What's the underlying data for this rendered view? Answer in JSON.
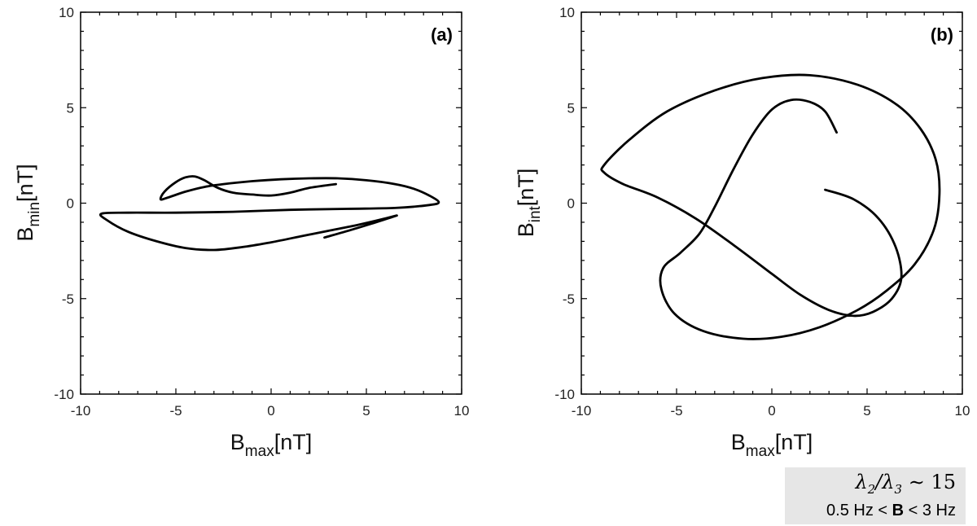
{
  "chart_data": [
    {
      "type": "line",
      "panel_label": "(a)",
      "xlabel": {
        "main": "B",
        "sub": "max",
        "unit": "[nT]"
      },
      "ylabel": {
        "main": "B",
        "sub": "min",
        "unit": "[nT]"
      },
      "xlim": [
        -10,
        10
      ],
      "ylim": [
        -10,
        10
      ],
      "x_ticks": [
        -10,
        -5,
        0,
        5,
        10
      ],
      "y_ticks": [
        -10,
        -5,
        0,
        5,
        10
      ],
      "x_tick_labels": [
        "-10",
        "-5",
        "0",
        "5",
        "10"
      ],
      "y_tick_labels": [
        "-10",
        "-5",
        "0",
        "5",
        "10"
      ],
      "grid": false,
      "series": [
        {
          "points": [
            [
              3.4,
              1.0
            ],
            [
              2.0,
              0.8
            ],
            [
              1.0,
              0.55
            ],
            [
              0.0,
              0.4
            ],
            [
              -1.0,
              0.45
            ],
            [
              -2.0,
              0.55
            ],
            [
              -2.8,
              0.8
            ],
            [
              -3.5,
              1.2
            ],
            [
              -4.0,
              1.4
            ],
            [
              -4.5,
              1.35
            ],
            [
              -5.0,
              1.1
            ],
            [
              -5.6,
              0.6
            ],
            [
              -5.8,
              0.2
            ],
            [
              -5.4,
              0.3
            ],
            [
              -4.5,
              0.6
            ],
            [
              -3.5,
              0.85
            ],
            [
              -2.5,
              1.0
            ],
            [
              -1.0,
              1.15
            ],
            [
              0.5,
              1.25
            ],
            [
              2.0,
              1.3
            ],
            [
              3.5,
              1.3
            ],
            [
              5.0,
              1.2
            ],
            [
              6.5,
              1.0
            ],
            [
              7.5,
              0.75
            ],
            [
              8.3,
              0.4
            ],
            [
              8.8,
              0.05
            ],
            [
              8.3,
              -0.1
            ],
            [
              6.5,
              -0.25
            ],
            [
              4.0,
              -0.3
            ],
            [
              1.0,
              -0.35
            ],
            [
              -2.0,
              -0.45
            ],
            [
              -5.0,
              -0.5
            ],
            [
              -7.5,
              -0.5
            ],
            [
              -8.9,
              -0.55
            ],
            [
              -8.6,
              -0.9
            ],
            [
              -7.5,
              -1.5
            ],
            [
              -6.0,
              -2.0
            ],
            [
              -4.5,
              -2.35
            ],
            [
              -3.0,
              -2.45
            ],
            [
              -1.5,
              -2.3
            ],
            [
              0.0,
              -2.05
            ],
            [
              1.5,
              -1.75
            ],
            [
              3.0,
              -1.45
            ],
            [
              4.5,
              -1.15
            ],
            [
              5.8,
              -0.85
            ],
            [
              6.6,
              -0.65
            ],
            [
              5.5,
              -1.0
            ],
            [
              4.2,
              -1.4
            ],
            [
              2.8,
              -1.8
            ]
          ]
        }
      ]
    },
    {
      "type": "line",
      "panel_label": "(b)",
      "xlabel": {
        "main": "B",
        "sub": "max",
        "unit": "[nT]"
      },
      "ylabel": {
        "main": "B",
        "sub": "int",
        "unit": "[nT]"
      },
      "xlim": [
        -10,
        10
      ],
      "ylim": [
        -10,
        10
      ],
      "x_ticks": [
        -10,
        -5,
        0,
        5,
        10
      ],
      "y_ticks": [
        -10,
        -5,
        0,
        5,
        10
      ],
      "x_tick_labels": [
        "-10",
        "-5",
        "0",
        "5",
        "10"
      ],
      "y_tick_labels": [
        "-10",
        "-5",
        "0",
        "5",
        "10"
      ],
      "grid": false,
      "series": [
        {
          "points": [
            [
              3.4,
              3.7
            ],
            [
              2.8,
              4.8
            ],
            [
              2.0,
              5.3
            ],
            [
              1.0,
              5.4
            ],
            [
              0.0,
              4.9
            ],
            [
              -1.0,
              3.6
            ],
            [
              -2.0,
              1.8
            ],
            [
              -3.0,
              -0.2
            ],
            [
              -3.8,
              -1.6
            ],
            [
              -4.8,
              -2.6
            ],
            [
              -5.7,
              -3.4
            ],
            [
              -5.8,
              -4.5
            ],
            [
              -5.1,
              -5.8
            ],
            [
              -3.6,
              -6.7
            ],
            [
              -1.5,
              -7.1
            ],
            [
              0.5,
              -7.0
            ],
            [
              2.5,
              -6.5
            ],
            [
              4.5,
              -5.6
            ],
            [
              6.0,
              -4.6
            ],
            [
              7.5,
              -3.2
            ],
            [
              8.5,
              -1.4
            ],
            [
              8.8,
              0.5
            ],
            [
              8.6,
              2.3
            ],
            [
              7.8,
              3.9
            ],
            [
              6.5,
              5.2
            ],
            [
              4.5,
              6.2
            ],
            [
              2.0,
              6.7
            ],
            [
              -0.5,
              6.55
            ],
            [
              -3.0,
              5.9
            ],
            [
              -5.5,
              4.8
            ],
            [
              -7.5,
              3.3
            ],
            [
              -8.8,
              2.0
            ],
            [
              -8.8,
              1.6
            ],
            [
              -7.8,
              1.0
            ],
            [
              -6.0,
              0.3
            ],
            [
              -4.0,
              -0.8
            ],
            [
              -2.0,
              -2.2
            ],
            [
              0.0,
              -3.7
            ],
            [
              1.5,
              -4.8
            ],
            [
              3.0,
              -5.6
            ],
            [
              4.3,
              -5.9
            ],
            [
              5.3,
              -5.7
            ],
            [
              6.3,
              -5.0
            ],
            [
              6.8,
              -3.9
            ],
            [
              6.5,
              -2.3
            ],
            [
              5.6,
              -0.8
            ],
            [
              4.3,
              0.2
            ],
            [
              2.8,
              0.7
            ]
          ]
        }
      ]
    }
  ],
  "legend": {
    "ratio": "λ2/λ3 ∼ 15",
    "ratio_parts": {
      "lambda_a": "λ",
      "sub_a": "2",
      "slash": "/",
      "lambda_b": "λ",
      "sub_b": "3",
      "approx": "∼ 15"
    },
    "band_prefix": "0.5 Hz < ",
    "band_bold": "B",
    "band_suffix": " < 3 Hz"
  }
}
